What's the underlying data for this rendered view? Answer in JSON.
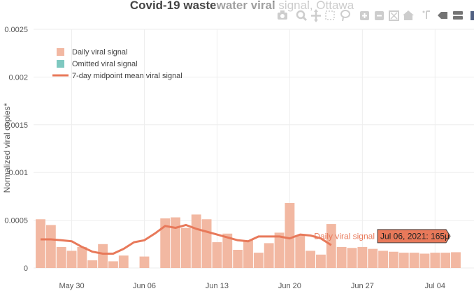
{
  "chart_data": {
    "type": "bar",
    "title": "Covid-19 wastewater viral signal, Ottawa",
    "ylabel": "Normalized viral copies*",
    "xlabel": "",
    "ylim": [
      0,
      0.0025
    ],
    "y_ticks": [
      "0",
      "0.0005",
      "0.001",
      "0.0015",
      "0.002",
      "0.0025"
    ],
    "y_tick_values": [
      0,
      0.0005,
      0.001,
      0.0015,
      0.002,
      0.0025
    ],
    "x_range": [
      "2021-05-27",
      "2021-07-06"
    ],
    "x_ticks": [
      {
        "label": "May 30",
        "date": "2021-05-30"
      },
      {
        "label": "Jun 06",
        "date": "2021-06-06"
      },
      {
        "label": "Jun 13",
        "date": "2021-06-13"
      },
      {
        "label": "Jun 20",
        "date": "2021-06-20"
      },
      {
        "label": "Jun 27",
        "date": "2021-06-27"
      },
      {
        "label": "Jul 04",
        "date": "2021-07-04"
      }
    ],
    "grid": true,
    "legend_position": "top-left",
    "series": [
      {
        "name": "Daily viral signal",
        "kind": "bar",
        "color": "#f2b8a2",
        "points": [
          {
            "date": "2021-05-27",
            "value": 0.00051
          },
          {
            "date": "2021-05-28",
            "value": 0.00045
          },
          {
            "date": "2021-05-29",
            "value": 0.00022
          },
          {
            "date": "2021-05-30",
            "value": 0.00018
          },
          {
            "date": "2021-05-31",
            "value": 0.00022
          },
          {
            "date": "2021-06-01",
            "value": 8e-05
          },
          {
            "date": "2021-06-02",
            "value": 0.00025
          },
          {
            "date": "2021-06-03",
            "value": 7e-05
          },
          {
            "date": "2021-06-04",
            "value": 0.00013
          },
          {
            "date": "2021-06-06",
            "value": 0.00012
          },
          {
            "date": "2021-06-08",
            "value": 0.00052
          },
          {
            "date": "2021-06-09",
            "value": 0.00053
          },
          {
            "date": "2021-06-10",
            "value": 0.00042
          },
          {
            "date": "2021-06-11",
            "value": 0.00056
          },
          {
            "date": "2021-06-12",
            "value": 0.00051
          },
          {
            "date": "2021-06-13",
            "value": 0.00027
          },
          {
            "date": "2021-06-14",
            "value": 0.00036
          },
          {
            "date": "2021-06-15",
            "value": 0.00019
          },
          {
            "date": "2021-06-16",
            "value": 0.00029
          },
          {
            "date": "2021-06-17",
            "value": 0.00016
          },
          {
            "date": "2021-06-18",
            "value": 0.00026
          },
          {
            "date": "2021-06-19",
            "value": 0.00037
          },
          {
            "date": "2021-06-20",
            "value": 0.00068
          },
          {
            "date": "2021-06-21",
            "value": 0.00034
          },
          {
            "date": "2021-06-22",
            "value": 0.00018
          },
          {
            "date": "2021-06-23",
            "value": 0.00014
          },
          {
            "date": "2021-06-24",
            "value": 0.00046
          },
          {
            "date": "2021-06-25",
            "value": 0.00022
          },
          {
            "date": "2021-06-26",
            "value": 0.00021
          },
          {
            "date": "2021-06-27",
            "value": 0.00022
          },
          {
            "date": "2021-06-28",
            "value": 0.0002
          },
          {
            "date": "2021-06-29",
            "value": 0.00018
          },
          {
            "date": "2021-06-30",
            "value": 0.00017
          },
          {
            "date": "2021-07-01",
            "value": 0.00016
          },
          {
            "date": "2021-07-02",
            "value": 0.00016
          },
          {
            "date": "2021-07-03",
            "value": 0.00015
          },
          {
            "date": "2021-07-04",
            "value": 0.00016
          },
          {
            "date": "2021-07-05",
            "value": 0.00016
          },
          {
            "date": "2021-07-06",
            "value": 0.000165
          }
        ]
      },
      {
        "name": "Omitted viral signal",
        "kind": "bar",
        "color": "#7ec8c0",
        "points": []
      },
      {
        "name": "7-day midpoint mean viral signal",
        "kind": "line",
        "color": "#e8795a",
        "points": [
          {
            "date": "2021-05-27",
            "value": 0.0003
          },
          {
            "date": "2021-05-28",
            "value": 0.0003
          },
          {
            "date": "2021-05-29",
            "value": 0.00029
          },
          {
            "date": "2021-05-30",
            "value": 0.00028
          },
          {
            "date": "2021-05-31",
            "value": 0.00022
          },
          {
            "date": "2021-06-01",
            "value": 0.00017
          },
          {
            "date": "2021-06-02",
            "value": 0.00015
          },
          {
            "date": "2021-06-03",
            "value": 0.00015
          },
          {
            "date": "2021-06-04",
            "value": 0.0002
          },
          {
            "date": "2021-06-05",
            "value": 0.00027
          },
          {
            "date": "2021-06-06",
            "value": 0.00029
          },
          {
            "date": "2021-06-07",
            "value": 0.00036
          },
          {
            "date": "2021-06-08",
            "value": 0.00044
          },
          {
            "date": "2021-06-09",
            "value": 0.00042
          },
          {
            "date": "2021-06-10",
            "value": 0.00045
          },
          {
            "date": "2021-06-11",
            "value": 0.00041
          },
          {
            "date": "2021-06-12",
            "value": 0.00038
          },
          {
            "date": "2021-06-13",
            "value": 0.00035
          },
          {
            "date": "2021-06-14",
            "value": 0.00032
          },
          {
            "date": "2021-06-15",
            "value": 0.00029
          },
          {
            "date": "2021-06-16",
            "value": 0.00028
          },
          {
            "date": "2021-06-17",
            "value": 0.00033
          },
          {
            "date": "2021-06-18",
            "value": 0.00033
          },
          {
            "date": "2021-06-19",
            "value": 0.00033
          },
          {
            "date": "2021-06-20",
            "value": 0.00031
          },
          {
            "date": "2021-06-21",
            "value": 0.00035
          },
          {
            "date": "2021-06-22",
            "value": 0.00034
          },
          {
            "date": "2021-06-23",
            "value": 0.00031
          },
          {
            "date": "2021-06-24",
            "value": 0.00024
          }
        ]
      }
    ],
    "hover": {
      "series_label": "Daily viral signal",
      "text": "Jul 06, 2021: 165µ"
    }
  },
  "modebar": {
    "icons": [
      "camera-icon",
      "zoom-icon",
      "pan-icon",
      "box-select-icon",
      "lasso-select-icon",
      "zoom-in-icon",
      "zoom-out-icon",
      "autoscale-icon",
      "reset-axes-icon",
      "spike-lines-icon",
      "hover-closest-icon",
      "hover-compare-icon",
      "plotly-logo"
    ]
  }
}
